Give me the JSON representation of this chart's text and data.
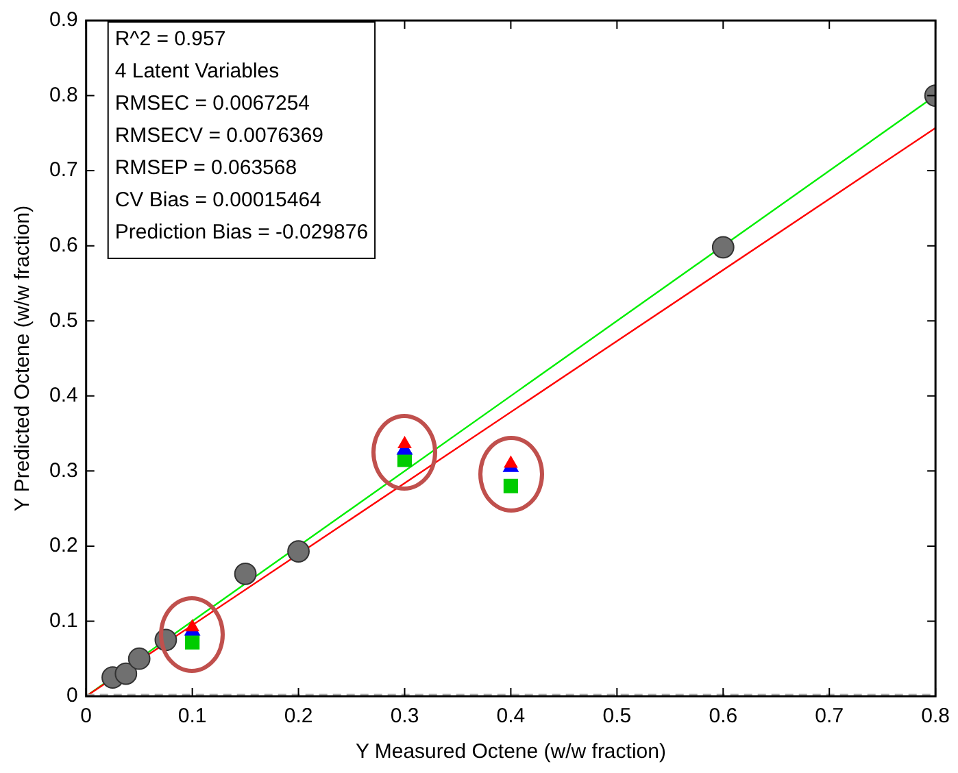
{
  "chart_data": {
    "type": "scatter",
    "xlabel": "Y Measured Octene (w/w fraction)",
    "ylabel": "Y Predicted Octene (w/w fraction)",
    "xlim": [
      0,
      0.8
    ],
    "xticks": [
      0,
      0.1,
      0.2,
      0.3,
      0.4,
      0.5,
      0.6,
      0.7,
      0.8
    ],
    "ylim": [
      0,
      0.9
    ],
    "yticks": [
      0,
      0.1,
      0.2,
      0.3,
      0.4,
      0.5,
      0.6,
      0.7,
      0.8,
      0.9
    ],
    "grid": false,
    "legend": false,
    "series": [
      {
        "type": "line",
        "color": "#00ee00",
        "marker": "none",
        "x": [
          0,
          0.8
        ],
        "values": [
          0,
          0.8
        ]
      },
      {
        "type": "line",
        "color": "#ff0000",
        "marker": "none",
        "x": [
          0,
          0.8
        ],
        "values": [
          0,
          0.757
        ]
      },
      {
        "color": "#707070",
        "marker": "circle",
        "x": [
          0.025,
          0.0375,
          0.05,
          0.075,
          0.15,
          0.2,
          0.6,
          0.8
        ],
        "values": [
          0.025,
          0.03,
          0.05,
          0.075,
          0.163,
          0.193,
          0.598,
          0.8
        ]
      },
      {
        "color": "#00cc00",
        "marker": "square",
        "x": [
          0.1,
          0.3,
          0.4
        ],
        "values": [
          0.072,
          0.315,
          0.28
        ]
      },
      {
        "color": "#0000ff",
        "marker": "triangle",
        "x": [
          0.1,
          0.3,
          0.4
        ],
        "values": [
          0.087,
          0.328,
          0.305
        ]
      },
      {
        "color": "#ff0000",
        "marker": "triangle",
        "x": [
          0.1,
          0.3,
          0.4
        ],
        "values": [
          0.092,
          0.336,
          0.31
        ]
      }
    ],
    "ref_lines": [
      {
        "axis": "y",
        "value": 0,
        "color": "#aaaaaa",
        "line_style": "dashed"
      }
    ],
    "annotations": [
      "R^2 = 0.957",
      "4 Latent Variables",
      "RMSEC = 0.0067254",
      "RMSECV = 0.0076369",
      "RMSEP = 0.063568",
      "CV Bias = 0.00015464",
      "Prediction Bias = -0.029876"
    ]
  }
}
